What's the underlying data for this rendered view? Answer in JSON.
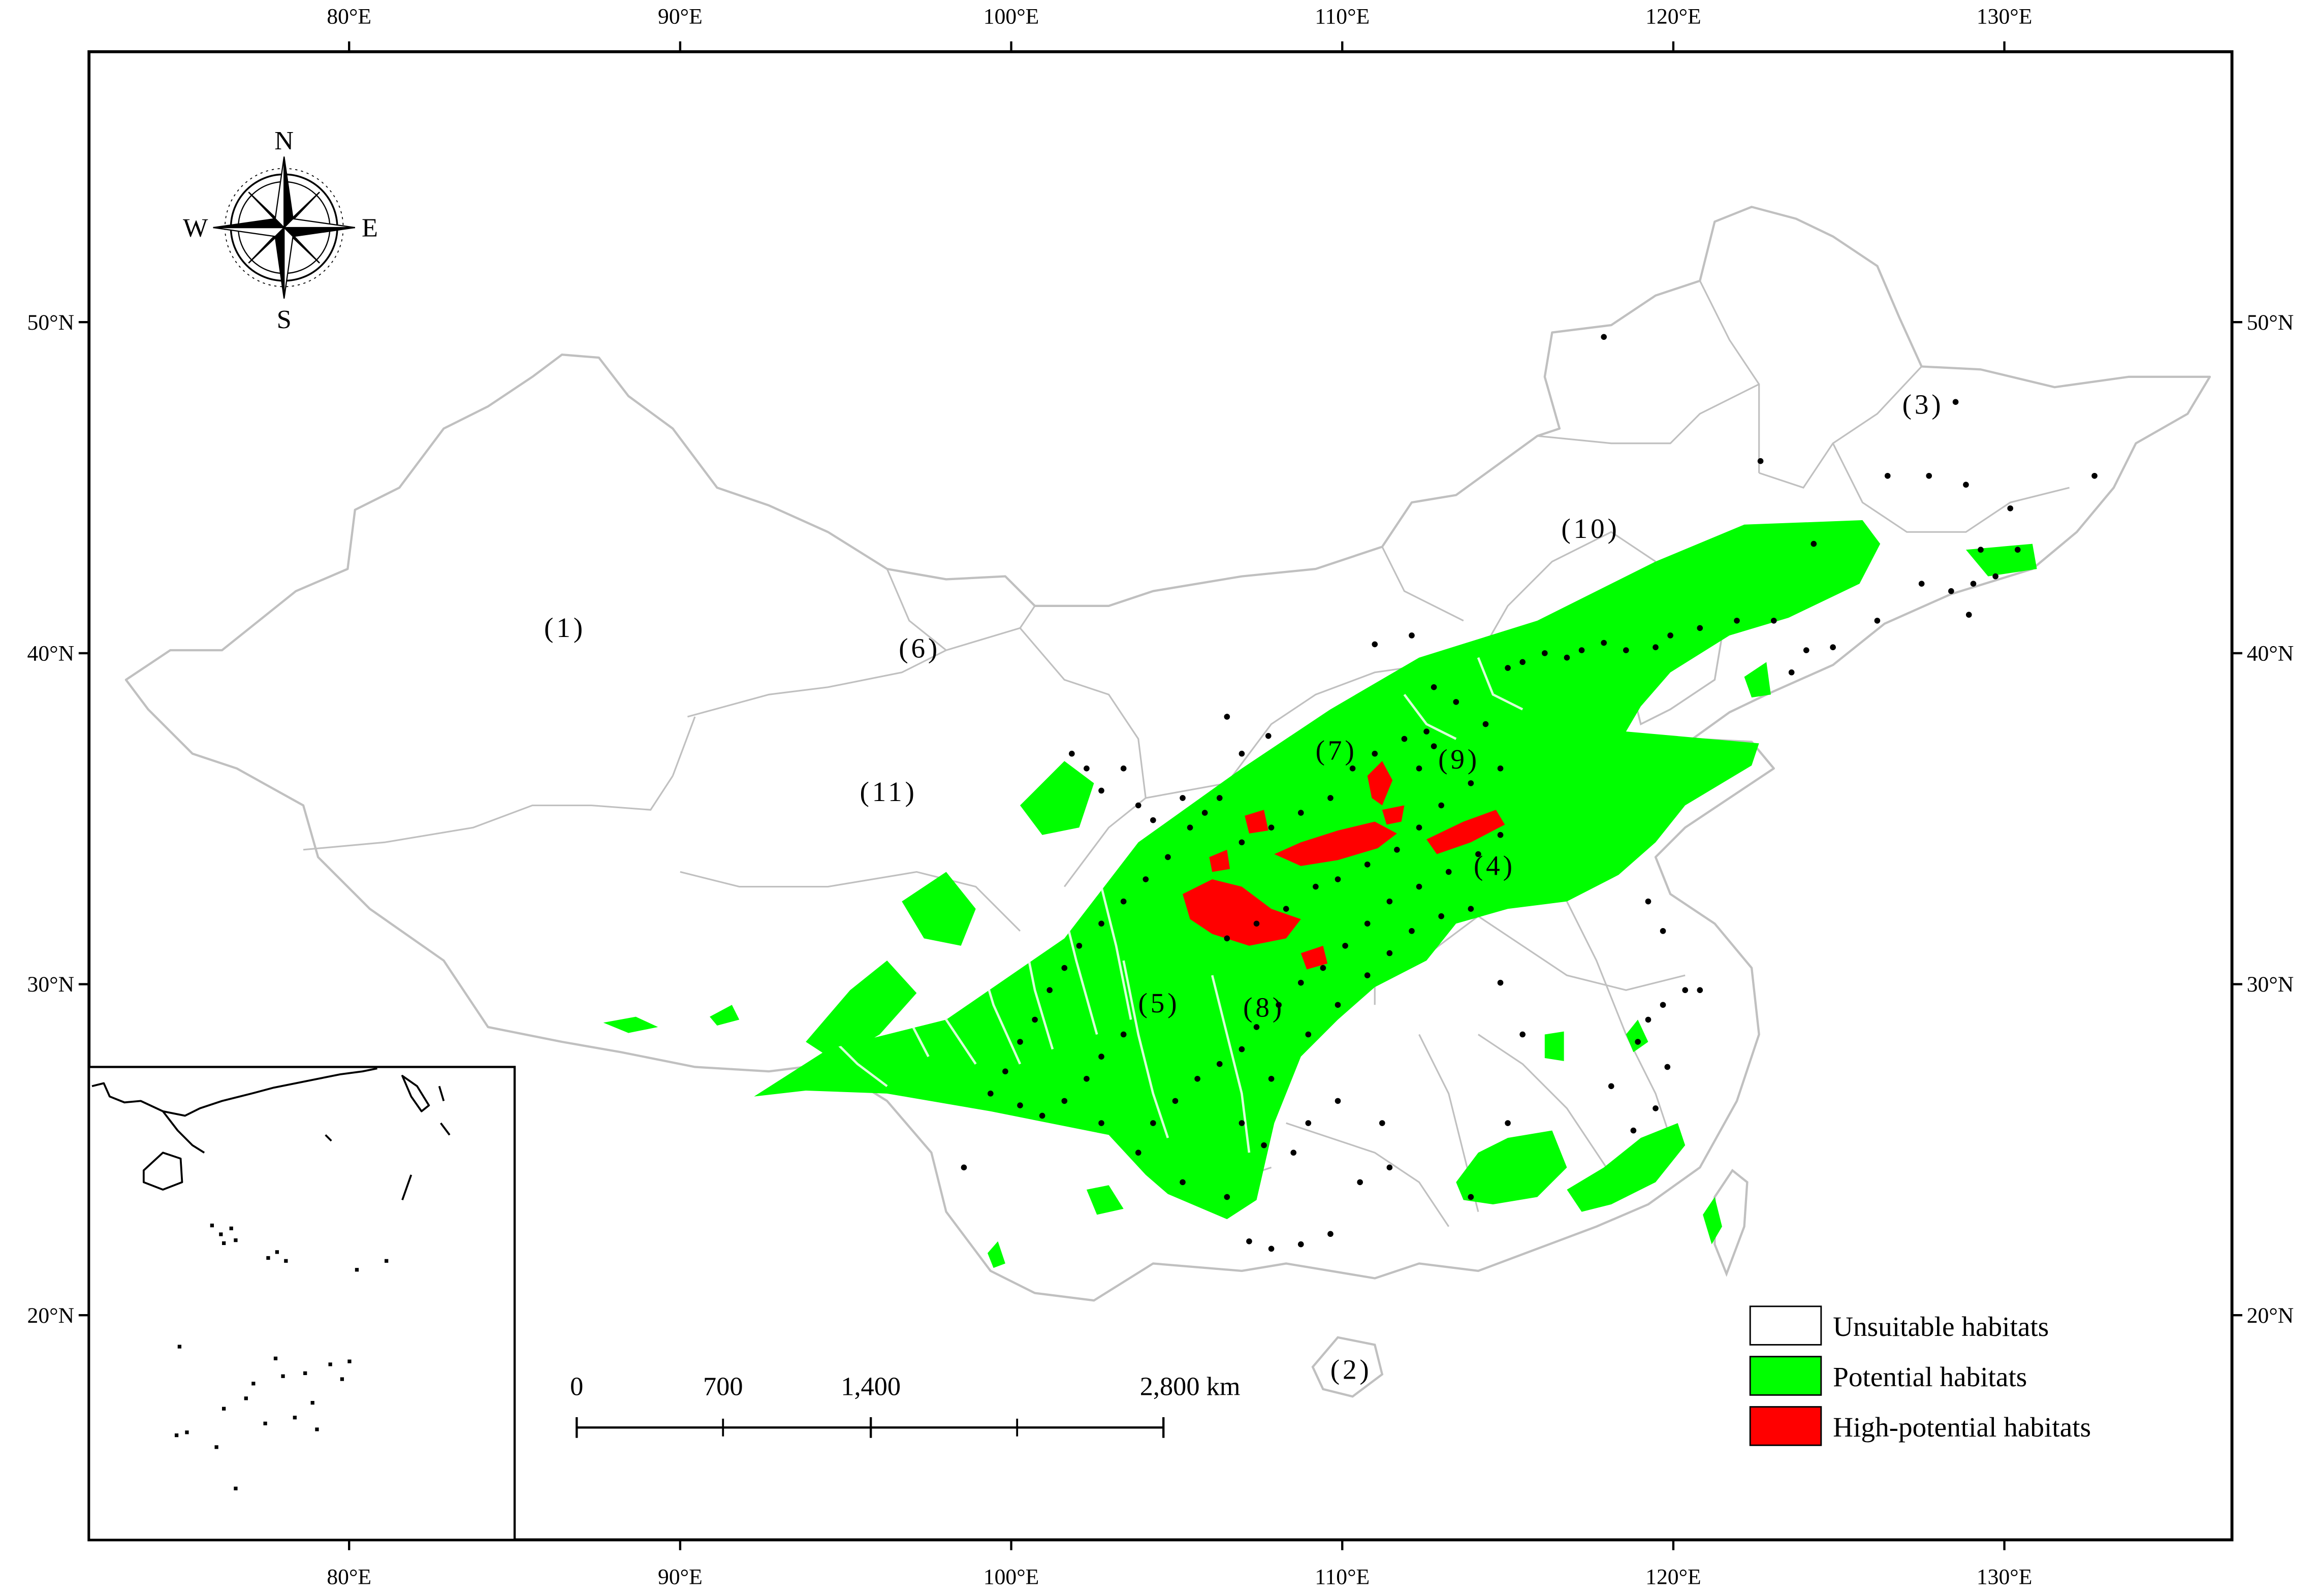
{
  "map": {
    "lon_ticks": [
      "80°E",
      "90°E",
      "100°E",
      "110°E",
      "120°E",
      "130°E"
    ],
    "lat_ticks": [
      "50°N",
      "40°N",
      "30°N",
      "20°N"
    ],
    "compass": {
      "n": "N",
      "s": "S",
      "e": "E",
      "w": "W"
    },
    "regions": [
      {
        "label": "(1)"
      },
      {
        "label": "(2)"
      },
      {
        "label": "(3)"
      },
      {
        "label": "(4)"
      },
      {
        "label": "(5)"
      },
      {
        "label": "(6)"
      },
      {
        "label": "(7)"
      },
      {
        "label": "(8)"
      },
      {
        "label": "(9)"
      },
      {
        "label": "(10)"
      },
      {
        "label": "(11)"
      }
    ],
    "scale_bar": {
      "labels": [
        "0",
        "700",
        "1,400",
        "2,800 km"
      ]
    },
    "legend": [
      {
        "label": "Unsuitable habitats",
        "color": "#ffffff"
      },
      {
        "label": "Potential habitats",
        "color": "#00ff00"
      },
      {
        "label": "High-potential habitats",
        "color": "#ff0000"
      }
    ],
    "colors": {
      "boundary": "#c0c0c0",
      "potential": "#00ff00",
      "high": "#ff0000",
      "points": "#000000"
    }
  }
}
